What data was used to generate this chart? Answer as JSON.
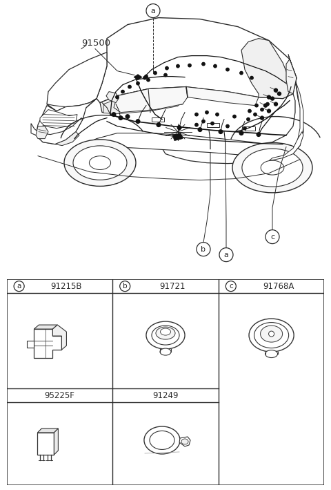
{
  "bg_color": "#ffffff",
  "line_color": "#2a2a2a",
  "part_number_main": "91500",
  "car_label_a_top": "a",
  "car_label_b": "b",
  "car_label_a_bot": "a",
  "car_label_c": "c",
  "table_headers": [
    {
      "label": "a",
      "part": "91215B"
    },
    {
      "label": "b",
      "part": "91721"
    },
    {
      "label": "c",
      "part": "91768A"
    }
  ],
  "table_row2": [
    {
      "part": "95225F"
    },
    {
      "part": "91249"
    },
    {
      "part": ""
    }
  ]
}
